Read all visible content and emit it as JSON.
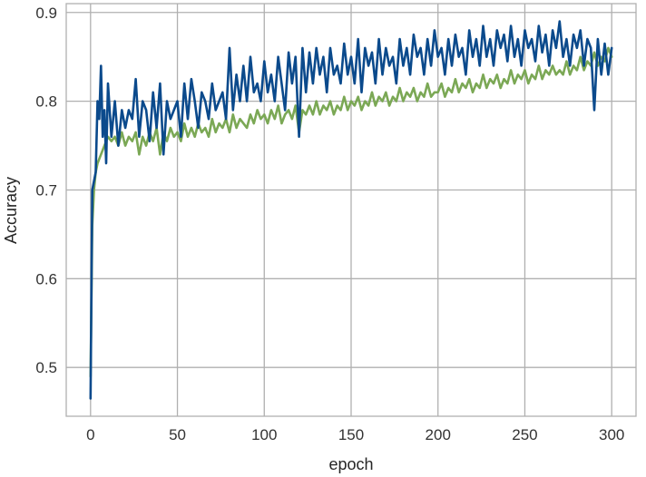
{
  "chart_data": {
    "type": "line",
    "title": "",
    "xlabel": "epoch",
    "ylabel": "Accuracy",
    "xlim": [
      -14,
      314
    ],
    "ylim": [
      0.445,
      0.91
    ],
    "xticks": [
      0,
      50,
      100,
      150,
      200,
      250,
      300
    ],
    "yticks": [
      0.5,
      0.6,
      0.7,
      0.8,
      0.9
    ],
    "grid": true,
    "legend": "none",
    "colors": {
      "background": "#ffffff",
      "grid": "#b0b0b0",
      "series1": "#0b4a8c",
      "series2": "#7ba855"
    },
    "series": [
      {
        "x": [
          0,
          1,
          2,
          3,
          4,
          5,
          6,
          7,
          8,
          9,
          10,
          12,
          14,
          16,
          18,
          20,
          22,
          24,
          26,
          28,
          30,
          32,
          34,
          36,
          38,
          40,
          42,
          44,
          46,
          48,
          50,
          52,
          54,
          56,
          58,
          60,
          62,
          64,
          66,
          68,
          70,
          72,
          74,
          76,
          78,
          80,
          82,
          84,
          86,
          88,
          90,
          92,
          94,
          96,
          98,
          100,
          102,
          104,
          106,
          108,
          110,
          112,
          114,
          116,
          118,
          120,
          122,
          124,
          126,
          128,
          130,
          132,
          134,
          136,
          138,
          140,
          142,
          144,
          146,
          148,
          150,
          152,
          154,
          156,
          158,
          160,
          162,
          164,
          166,
          168,
          170,
          172,
          174,
          176,
          178,
          180,
          182,
          184,
          186,
          188,
          190,
          192,
          194,
          196,
          198,
          200,
          202,
          204,
          206,
          208,
          210,
          212,
          214,
          216,
          218,
          220,
          222,
          224,
          226,
          228,
          230,
          232,
          234,
          236,
          238,
          240,
          242,
          244,
          246,
          248,
          250,
          252,
          254,
          256,
          258,
          260,
          262,
          264,
          266,
          268,
          270,
          272,
          274,
          276,
          278,
          280,
          282,
          284,
          286,
          288,
          290,
          292,
          294,
          296,
          298,
          300
        ],
        "values": [
          0.465,
          0.7,
          0.71,
          0.72,
          0.8,
          0.78,
          0.84,
          0.76,
          0.79,
          0.73,
          0.82,
          0.76,
          0.8,
          0.75,
          0.79,
          0.77,
          0.79,
          0.78,
          0.825,
          0.76,
          0.8,
          0.79,
          0.755,
          0.81,
          0.77,
          0.82,
          0.74,
          0.8,
          0.78,
          0.79,
          0.8,
          0.76,
          0.82,
          0.78,
          0.825,
          0.8,
          0.77,
          0.81,
          0.8,
          0.78,
          0.82,
          0.79,
          0.8,
          0.81,
          0.78,
          0.86,
          0.79,
          0.83,
          0.8,
          0.84,
          0.8,
          0.85,
          0.81,
          0.82,
          0.8,
          0.845,
          0.81,
          0.83,
          0.8,
          0.85,
          0.82,
          0.79,
          0.855,
          0.82,
          0.85,
          0.76,
          0.86,
          0.81,
          0.855,
          0.82,
          0.86,
          0.83,
          0.85,
          0.81,
          0.86,
          0.83,
          0.84,
          0.82,
          0.865,
          0.83,
          0.85,
          0.82,
          0.87,
          0.81,
          0.86,
          0.84,
          0.855,
          0.82,
          0.87,
          0.83,
          0.86,
          0.84,
          0.85,
          0.82,
          0.87,
          0.84,
          0.86,
          0.83,
          0.875,
          0.85,
          0.86,
          0.83,
          0.87,
          0.84,
          0.88,
          0.85,
          0.86,
          0.83,
          0.87,
          0.84,
          0.875,
          0.85,
          0.86,
          0.83,
          0.88,
          0.85,
          0.87,
          0.84,
          0.885,
          0.85,
          0.87,
          0.84,
          0.88,
          0.86,
          0.875,
          0.845,
          0.885,
          0.85,
          0.87,
          0.84,
          0.88,
          0.86,
          0.87,
          0.845,
          0.885,
          0.855,
          0.875,
          0.84,
          0.88,
          0.86,
          0.89,
          0.85,
          0.87,
          0.84,
          0.875,
          0.86,
          0.88,
          0.84,
          0.87,
          0.86,
          0.79,
          0.87,
          0.83,
          0.865,
          0.83,
          0.86
        ]
      },
      {
        "x": [
          0,
          1,
          2,
          3,
          4,
          5,
          6,
          7,
          8,
          9,
          10,
          12,
          14,
          16,
          18,
          20,
          22,
          24,
          26,
          28,
          30,
          32,
          34,
          36,
          38,
          40,
          42,
          44,
          46,
          48,
          50,
          52,
          54,
          56,
          58,
          60,
          62,
          64,
          66,
          68,
          70,
          72,
          74,
          76,
          78,
          80,
          82,
          84,
          86,
          88,
          90,
          92,
          94,
          96,
          98,
          100,
          102,
          104,
          106,
          108,
          110,
          112,
          114,
          116,
          118,
          120,
          122,
          124,
          126,
          128,
          130,
          132,
          134,
          136,
          138,
          140,
          142,
          144,
          146,
          148,
          150,
          152,
          154,
          156,
          158,
          160,
          162,
          164,
          166,
          168,
          170,
          172,
          174,
          176,
          178,
          180,
          182,
          184,
          186,
          188,
          190,
          192,
          194,
          196,
          198,
          200,
          202,
          204,
          206,
          208,
          210,
          212,
          214,
          216,
          218,
          220,
          222,
          224,
          226,
          228,
          230,
          232,
          234,
          236,
          238,
          240,
          242,
          244,
          246,
          248,
          250,
          252,
          254,
          256,
          258,
          260,
          262,
          264,
          266,
          268,
          270,
          272,
          274,
          276,
          278,
          280,
          282,
          284,
          286,
          288,
          290,
          292,
          294,
          296,
          298,
          300
        ],
        "values": [
          0.49,
          0.66,
          0.7,
          0.72,
          0.73,
          0.735,
          0.74,
          0.745,
          0.75,
          0.755,
          0.76,
          0.755,
          0.76,
          0.75,
          0.765,
          0.75,
          0.76,
          0.755,
          0.765,
          0.74,
          0.76,
          0.75,
          0.765,
          0.755,
          0.77,
          0.74,
          0.765,
          0.755,
          0.77,
          0.76,
          0.765,
          0.755,
          0.775,
          0.76,
          0.77,
          0.76,
          0.775,
          0.765,
          0.77,
          0.76,
          0.78,
          0.765,
          0.775,
          0.77,
          0.78,
          0.765,
          0.785,
          0.77,
          0.78,
          0.775,
          0.77,
          0.785,
          0.775,
          0.79,
          0.78,
          0.785,
          0.775,
          0.79,
          0.78,
          0.795,
          0.775,
          0.785,
          0.79,
          0.78,
          0.795,
          0.765,
          0.79,
          0.785,
          0.795,
          0.785,
          0.8,
          0.785,
          0.795,
          0.79,
          0.8,
          0.785,
          0.795,
          0.79,
          0.805,
          0.79,
          0.8,
          0.795,
          0.805,
          0.79,
          0.8,
          0.795,
          0.81,
          0.795,
          0.805,
          0.8,
          0.81,
          0.795,
          0.805,
          0.8,
          0.815,
          0.8,
          0.81,
          0.805,
          0.815,
          0.8,
          0.81,
          0.805,
          0.82,
          0.805,
          0.81,
          0.81,
          0.82,
          0.805,
          0.815,
          0.81,
          0.825,
          0.81,
          0.82,
          0.815,
          0.825,
          0.81,
          0.82,
          0.815,
          0.83,
          0.815,
          0.825,
          0.82,
          0.83,
          0.815,
          0.825,
          0.82,
          0.835,
          0.82,
          0.83,
          0.825,
          0.835,
          0.82,
          0.83,
          0.825,
          0.84,
          0.825,
          0.835,
          0.83,
          0.84,
          0.83,
          0.835,
          0.83,
          0.845,
          0.83,
          0.84,
          0.835,
          0.85,
          0.835,
          0.845,
          0.84,
          0.855,
          0.84,
          0.85,
          0.845,
          0.86,
          0.85
        ]
      }
    ]
  }
}
